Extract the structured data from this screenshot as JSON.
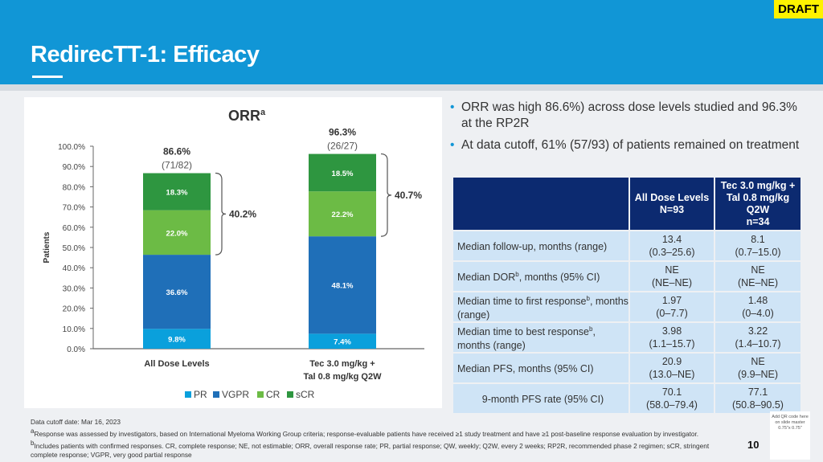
{
  "header": {
    "title": "RedirecTT-1: Efficacy",
    "draft_badge": "DRAFT"
  },
  "bullets": [
    "ORR was high 86.6%) across dose levels studied and 96.3% at the RP2R",
    "At data cutoff, 61% (57/93) of patients remained on treatment"
  ],
  "colors": {
    "header": "#1196d6",
    "PR": "#0aa0dc",
    "VGPR": "#1f6fb8",
    "CR": "#6cbb45",
    "sCR": "#2e9640",
    "table_header": "#0c2a70",
    "table_cell": "#cfe4f6"
  },
  "chart_data": {
    "type": "bar",
    "stacked": true,
    "title": "ORR",
    "title_sup": "a",
    "ylabel": "Patients",
    "ylim": [
      0,
      100
    ],
    "yticks": [
      "0.0%",
      "10.0%",
      "20.0%",
      "30.0%",
      "40.0%",
      "50.0%",
      "60.0%",
      "70.0%",
      "80.0%",
      "90.0%",
      "100.0%"
    ],
    "categories": [
      "All Dose Levels",
      "Tec 3.0 mg/kg + Tal 0.8 mg/kg Q2W"
    ],
    "category_lines": [
      [
        "All Dose Levels"
      ],
      [
        "Tec 3.0 mg/kg +",
        "Tal 0.8 mg/kg Q2W"
      ]
    ],
    "series": [
      {
        "name": "PR",
        "values": [
          9.8,
          7.4
        ],
        "labels": [
          "9.8%",
          "7.4%"
        ]
      },
      {
        "name": "VGPR",
        "values": [
          36.6,
          48.1
        ],
        "labels": [
          "36.6%",
          "48.1%"
        ]
      },
      {
        "name": "CR",
        "values": [
          22.0,
          22.2
        ],
        "labels": [
          "22.0%",
          "22.2%"
        ]
      },
      {
        "name": "sCR",
        "values": [
          18.3,
          18.5
        ],
        "labels": [
          "18.3%",
          "18.5%"
        ]
      }
    ],
    "totals": [
      "86.6%",
      "96.3%"
    ],
    "totals_n": [
      "(71/82)",
      "(26/27)"
    ],
    "bracket_labels": [
      "40.2%",
      "40.7%"
    ],
    "legend_position": "bottom",
    "grid": false
  },
  "table": {
    "headers": [
      [
        "",
        ""
      ],
      [
        "All Dose Levels",
        "N=93"
      ],
      [
        "Tec 3.0 mg/kg +",
        "Tal 0.8 mg/kg",
        "Q2W",
        "n=34"
      ]
    ],
    "rows": [
      {
        "label": "Median follow-up, months (range)",
        "sup": "",
        "label2": "",
        "c1": [
          "13.4",
          "(0.3–25.6)"
        ],
        "c2": [
          "8.1",
          "(0.7–15.0)"
        ]
      },
      {
        "label": "Median DOR",
        "sup": "b",
        "label2": ", months (95% CI)",
        "c1": [
          "NE",
          "(NE–NE)"
        ],
        "c2": [
          "NE",
          "(NE–NE)"
        ]
      },
      {
        "label": "Median time to first response",
        "sup": "b",
        "label2": ", months (range)",
        "c1": [
          "1.97",
          "(0–7.7)"
        ],
        "c2": [
          "1.48",
          "(0–4.0)"
        ]
      },
      {
        "label": "Median time to best response",
        "sup": "b",
        "label2": ", months (range)",
        "c1": [
          "3.98",
          "(1.1–15.7)"
        ],
        "c2": [
          "3.22",
          "(1.4–10.7)"
        ]
      },
      {
        "label": "Median PFS, months (95% CI)",
        "sup": "",
        "label2": "",
        "c1": [
          "20.9",
          "(13.0–NE)"
        ],
        "c2": [
          "NE",
          "(9.9–NE)"
        ]
      },
      {
        "label": "9-month PFS rate (95% CI)",
        "sup": "",
        "label2": "",
        "c1": [
          "70.1",
          "(58.0–79.4)"
        ],
        "c2": [
          "77.1",
          "(50.8–90.5)"
        ]
      }
    ]
  },
  "footnotes": {
    "cutoff": "Data cutoff date: Mar 16, 2023",
    "a_sup": "a",
    "a": "Response was assessed by investigators, based on International Myeloma Working Group criteria; response-evaluable patients have received ≥1 study treatment and have ≥1 post-baseline response evaluation by investigator. ",
    "b_sup": "b",
    "b": "Includes patients with confirmed responses. CR, complete response; NE, not estimable; ORR, overall response rate; PR, partial response; QW, weekly; Q2W, every 2 weeks; RP2R, recommended phase 2 regimen; sCR, stringent complete response; VGPR, very good partial response"
  },
  "page_number": "10",
  "qr_placeholder": "Add QR code here on slide master 0.75\"x 0.75\""
}
